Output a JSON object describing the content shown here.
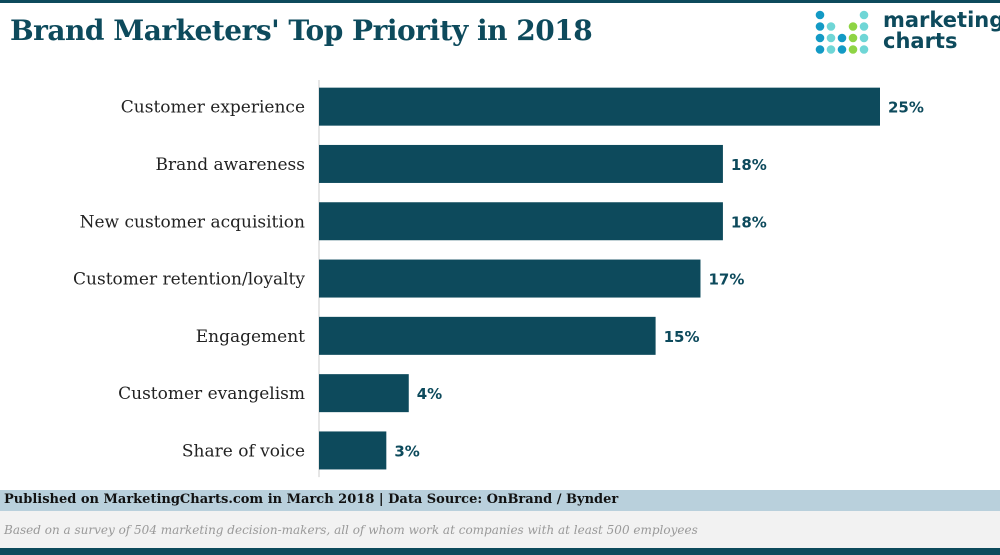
{
  "header": {
    "title": "Brand Marketers' Top Priority in 2018"
  },
  "logo": {
    "line1": "marketing",
    "line2": "charts",
    "colors": [
      "#139ac5",
      "#6fd6d6",
      "#8ed444"
    ]
  },
  "chart_data": {
    "type": "bar",
    "orientation": "horizontal",
    "title": "Brand Marketers' Top Priority in 2018",
    "categories": [
      "Customer experience",
      "Brand awareness",
      "New customer acquisition",
      "Customer retention/loyalty",
      "Engagement",
      "Customer evangelism",
      "Share of voice"
    ],
    "values": [
      25,
      18,
      18,
      17,
      15,
      4,
      3
    ],
    "data_labels": [
      "25%",
      "18%",
      "18%",
      "17%",
      "15%",
      "4%",
      "3%"
    ],
    "xlim": [
      0,
      25
    ],
    "grid": false,
    "bar_color": "#0d4a5c"
  },
  "footer": {
    "published": "Published on MarketingCharts.com in March 2018 | Data Source: OnBrand / Bynder",
    "note": "Based on a survey of 504 marketing decision-makers, all of whom work at companies with at least 500 employees"
  }
}
